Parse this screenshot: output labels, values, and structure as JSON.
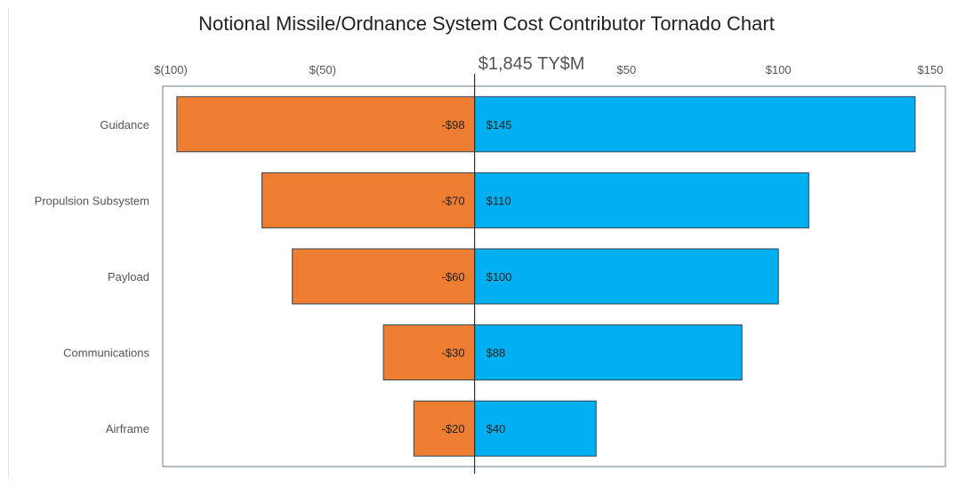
{
  "chart_data": {
    "type": "bar",
    "orientation": "horizontal",
    "title": "Notional Missile/Ordnance System Cost Contributor Tornado Chart",
    "center_label": "$1,845 TY$M",
    "categories": [
      "Guidance",
      "Propulsion Subsystem",
      "Payload",
      "Communications",
      "Airframe"
    ],
    "series": [
      {
        "values": [
          -98,
          -70,
          -60,
          -30,
          -20
        ],
        "labels": [
          "-$98",
          "-$70",
          "-$60",
          "-$30",
          "-$20"
        ],
        "color": "#ED7D31"
      },
      {
        "values": [
          145,
          110,
          100,
          88,
          40
        ],
        "labels": [
          "$145",
          "$110",
          "$100",
          "$88",
          "$40"
        ],
        "color": "#00B0F0"
      }
    ],
    "xlim": [
      -100,
      150
    ],
    "x_ticks": [
      {
        "value": -100,
        "label": "$(100)"
      },
      {
        "value": -50,
        "label": "$(50)"
      },
      {
        "value": 50,
        "label": "$50"
      },
      {
        "value": 100,
        "label": "$100"
      },
      {
        "value": 150,
        "label": "$150"
      }
    ],
    "x_axis_position": "top",
    "grid": false,
    "legend": "none"
  }
}
